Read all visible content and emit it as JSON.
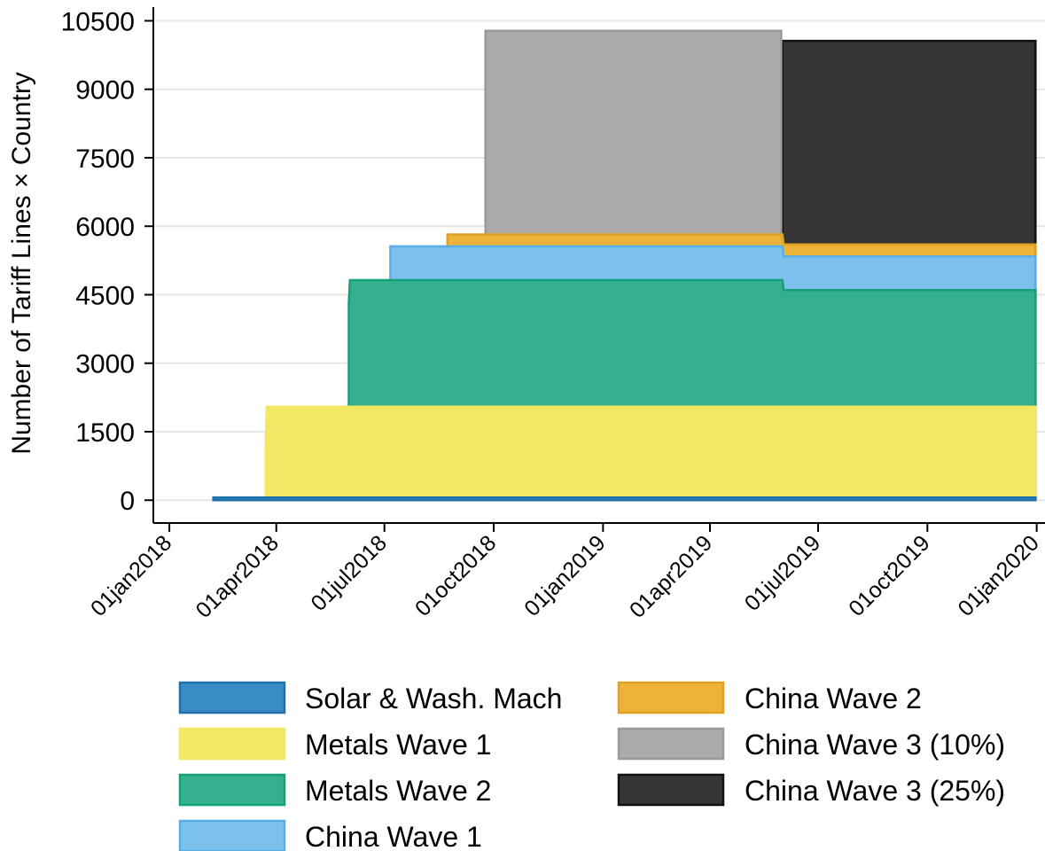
{
  "chart_data": {
    "type": "area",
    "title": "",
    "xlabel": "",
    "ylabel": "Number of Tariff Lines × Country",
    "ylim": [
      -500,
      10800
    ],
    "xlim": [
      "2017-12-20",
      "2020-01-05"
    ],
    "y_ticks": [
      0,
      1500,
      3000,
      4500,
      6000,
      7500,
      9000,
      10500
    ],
    "x_ticks": [
      {
        "date": "2018-01-01",
        "label": "01jan2018"
      },
      {
        "date": "2018-04-01",
        "label": "01apr2018"
      },
      {
        "date": "2018-07-01",
        "label": "01jul2018"
      },
      {
        "date": "2018-10-01",
        "label": "01oct2018"
      },
      {
        "date": "2019-01-01",
        "label": "01jan2019"
      },
      {
        "date": "2019-04-01",
        "label": "01apr2019"
      },
      {
        "date": "2019-07-01",
        "label": "01jul2019"
      },
      {
        "date": "2019-10-01",
        "label": "01oct2019"
      },
      {
        "date": "2020-01-01",
        "label": "01jan2020"
      }
    ],
    "grid": true,
    "legend_position": "bottom",
    "stacked": true,
    "series": [
      {
        "name": "Solar & Wash. Mach",
        "color": "#3a8cc5",
        "edge": "#1f6fa8",
        "points": [
          [
            "2018-02-07",
            60
          ],
          [
            "2019-12-31",
            60
          ]
        ]
      },
      {
        "name": "Metals Wave 1",
        "color": "#f2e866",
        "edge": "#f2e866",
        "points": [
          [
            "2018-03-23",
            1200
          ],
          [
            "2018-03-24",
            2050
          ],
          [
            "2019-12-31",
            2050
          ]
        ]
      },
      {
        "name": "Metals Wave 2",
        "color": "#35b08e",
        "edge": "#16a07a",
        "points": [
          [
            "2018-06-01",
            4300
          ],
          [
            "2018-06-02",
            4820
          ],
          [
            "2019-06-01",
            4820
          ],
          [
            "2019-06-02",
            4600
          ],
          [
            "2019-12-31",
            4600
          ]
        ]
      },
      {
        "name": "China Wave 1",
        "color": "#7bc1ec",
        "edge": "#5aade5",
        "points": [
          [
            "2018-07-06",
            5560
          ],
          [
            "2019-06-01",
            5560
          ],
          [
            "2019-06-02",
            5340
          ],
          [
            "2019-12-31",
            5340
          ]
        ]
      },
      {
        "name": "China Wave 2",
        "color": "#ecb338",
        "edge": "#e0a020",
        "points": [
          [
            "2018-08-23",
            5820
          ],
          [
            "2019-06-01",
            5820
          ],
          [
            "2019-06-02",
            5600
          ],
          [
            "2019-12-31",
            5600
          ]
        ]
      },
      {
        "name": "China Wave 3 (10%)",
        "color": "#ababab",
        "edge": "#999999",
        "points": [
          [
            "2018-09-24",
            10280
          ],
          [
            "2019-05-31",
            10280
          ]
        ]
      },
      {
        "name": "China Wave 3 (25%)",
        "color": "#353535",
        "edge": "#111111",
        "points": [
          [
            "2019-06-01",
            10060
          ],
          [
            "2019-12-31",
            10060
          ]
        ]
      }
    ]
  }
}
